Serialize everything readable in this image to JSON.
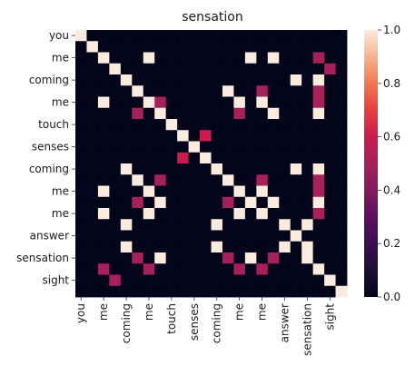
{
  "chart_data": {
    "type": "heatmap",
    "title": "sensation",
    "xlabel": "",
    "ylabel": "",
    "x_labels": [
      "you",
      "",
      "me",
      "",
      "coming",
      "",
      "me",
      "",
      "touch",
      "",
      "senses",
      "",
      "coming",
      "",
      "me",
      "",
      "me",
      "",
      "answer",
      "",
      "sensation",
      "",
      "sight",
      ""
    ],
    "y_labels": [
      "you",
      "",
      "me",
      "",
      "coming",
      "",
      "me",
      "",
      "touch",
      "",
      "senses",
      "",
      "coming",
      "",
      "me",
      "",
      "me",
      "",
      "answer",
      "",
      "sensation",
      "",
      "sight",
      ""
    ],
    "colorbar": {
      "min": 0.0,
      "max": 1.0,
      "ticks": [
        "0.0",
        "0.2",
        "0.4",
        "0.6",
        "0.8",
        "1.0"
      ]
    },
    "matrix": [
      [
        1,
        0,
        0,
        0,
        0,
        0,
        0,
        0,
        0,
        0,
        0,
        0,
        0,
        0,
        0,
        0,
        0,
        0,
        0,
        0,
        0,
        0,
        0,
        0
      ],
      [
        0,
        1,
        0,
        0,
        0,
        0,
        0,
        0,
        0,
        0,
        0,
        0,
        0,
        0,
        0,
        0,
        0,
        0,
        0,
        0,
        0,
        0,
        0,
        0
      ],
      [
        0,
        0,
        1,
        0,
        0,
        0,
        1,
        0,
        0,
        0,
        0,
        0,
        0,
        0,
        0,
        1,
        0,
        1,
        0,
        0,
        0,
        0.5,
        0,
        0
      ],
      [
        0,
        0,
        0,
        1,
        0,
        0,
        0,
        0,
        0,
        0,
        0,
        0,
        0,
        0,
        0,
        0,
        0,
        0,
        0,
        0,
        0,
        0,
        0.5,
        0
      ],
      [
        0,
        0,
        0,
        0,
        1,
        0,
        0,
        0,
        0,
        0,
        0,
        0,
        0,
        0,
        0,
        0,
        0,
        0,
        0,
        1,
        0,
        1,
        0,
        0
      ],
      [
        0,
        0,
        0,
        0,
        0,
        1,
        0,
        0,
        0,
        0,
        0,
        0,
        0,
        1,
        0,
        0,
        0.5,
        0,
        0,
        0,
        0,
        0.5,
        0,
        0
      ],
      [
        0,
        0,
        1,
        0,
        0,
        0,
        1,
        0.5,
        0,
        0,
        0,
        0,
        0,
        0,
        1,
        0,
        1,
        0,
        0,
        0,
        0,
        0.5,
        0,
        0
      ],
      [
        0,
        0,
        0,
        0,
        0,
        0.5,
        0,
        1,
        0,
        0,
        0,
        0,
        0,
        0,
        0.5,
        0,
        0,
        1,
        0,
        0,
        0,
        1,
        0,
        0
      ],
      [
        0,
        0,
        0,
        0,
        0,
        0,
        0,
        0,
        1,
        0,
        0,
        0,
        0,
        0,
        0,
        0,
        0,
        0,
        0,
        0,
        0,
        0,
        0,
        0
      ],
      [
        0,
        0,
        0,
        0,
        0,
        0,
        0,
        0,
        0,
        1,
        0,
        0.6,
        0,
        0,
        0,
        0,
        0,
        0,
        0,
        0,
        0,
        0,
        0,
        0
      ],
      [
        0,
        0,
        0,
        0,
        0,
        0,
        0,
        0,
        0,
        0,
        1,
        0,
        0,
        0,
        0,
        0,
        0,
        0,
        0,
        0,
        0,
        0,
        0,
        0
      ],
      [
        0,
        0,
        0,
        0,
        0,
        0,
        0,
        0,
        0,
        0.6,
        0,
        1,
        0,
        0,
        0,
        0,
        0,
        0,
        0,
        0,
        0,
        0,
        0,
        0
      ],
      [
        0,
        0,
        0,
        0,
        1,
        0,
        0,
        0,
        0,
        0,
        0,
        0,
        1,
        0,
        0,
        0,
        0,
        0,
        0,
        1,
        0,
        1,
        0,
        0
      ],
      [
        0,
        0,
        0,
        0,
        0,
        1,
        0,
        0.5,
        0,
        0,
        0,
        0,
        0,
        1,
        0,
        0,
        0.5,
        0,
        0,
        0,
        0,
        0.5,
        0,
        0
      ],
      [
        0,
        0,
        1,
        0,
        0,
        0,
        1,
        0,
        0,
        0,
        0,
        0,
        0,
        0,
        1,
        0,
        1,
        0,
        0,
        0,
        0,
        0.5,
        0,
        0
      ],
      [
        0,
        0,
        0,
        0,
        0,
        0.5,
        0,
        1,
        0,
        0,
        0,
        0,
        0,
        0.5,
        0,
        1,
        0,
        1,
        0,
        0,
        0,
        1,
        0,
        0
      ],
      [
        0,
        0,
        1,
        0,
        0,
        0,
        1,
        0,
        0,
        0,
        0,
        0,
        0,
        0,
        1,
        0,
        1,
        0,
        0,
        0,
        0,
        0.5,
        0,
        0
      ],
      [
        0,
        0,
        0,
        0,
        1,
        0,
        0,
        0,
        0,
        0,
        0,
        0,
        1,
        0,
        0,
        0,
        0,
        0,
        1,
        0,
        1,
        0,
        0,
        0
      ],
      [
        0,
        0,
        0,
        0,
        0,
        0,
        0,
        0,
        0,
        0,
        0,
        0,
        0,
        0,
        0,
        0,
        0,
        0,
        0,
        1,
        0,
        0,
        0,
        0
      ],
      [
        0,
        0,
        0,
        0,
        1,
        0,
        0,
        0,
        0,
        0,
        0,
        0,
        1,
        0,
        0,
        0,
        0,
        0,
        1,
        0,
        1,
        0,
        0,
        0
      ],
      [
        0,
        0,
        0,
        0,
        0,
        0.5,
        0,
        1,
        0,
        0,
        0,
        0,
        0,
        0.5,
        0,
        1,
        0,
        0.5,
        0,
        0,
        1,
        0,
        0,
        0
      ],
      [
        0,
        0,
        0.5,
        0,
        0,
        0,
        0.5,
        0,
        0,
        0,
        0,
        0,
        0,
        0,
        0.5,
        0,
        0.5,
        0,
        0,
        0,
        0,
        1,
        0,
        0
      ],
      [
        0,
        0,
        0,
        0.5,
        0,
        0,
        0,
        0,
        0,
        0,
        0,
        0,
        0,
        0,
        0,
        0,
        0,
        0,
        0,
        0,
        0,
        0,
        1,
        0
      ],
      [
        0,
        0,
        0,
        0,
        0,
        0,
        0,
        0,
        0,
        0,
        0,
        0,
        0,
        0,
        0,
        0,
        0,
        0,
        0,
        0,
        0,
        0,
        0,
        1
      ]
    ]
  }
}
